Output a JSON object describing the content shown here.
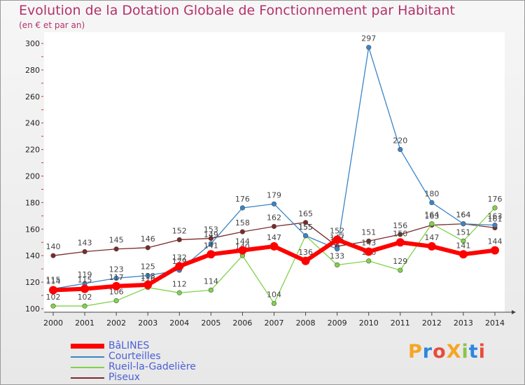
{
  "header": {
    "title": "Evolution de la Dotation Globale de Fonctionnement par Habitant",
    "subtitle": "(en € et par an)"
  },
  "logo": {
    "text": "ProXiti",
    "colors": [
      "#f5a623",
      "#2e86de",
      "#e74c3c",
      "#f5a623",
      "#8bc34a",
      "#2e86de",
      "#e74c3c"
    ]
  },
  "chart_data": {
    "type": "line",
    "x": [
      "2000",
      "2001",
      "2002",
      "2003",
      "2004",
      "2005",
      "2006",
      "2007",
      "2008",
      "2009",
      "2010",
      "2011",
      "2012",
      "2013",
      "2014"
    ],
    "ylim": [
      100,
      300
    ],
    "yticks": [
      100,
      120,
      140,
      160,
      180,
      200,
      220,
      240,
      260,
      280,
      300
    ],
    "grid": false,
    "legend_position": "bottom-left",
    "series": [
      {
        "name": "Piseux",
        "color": "#7a2a2a",
        "values": [
          140,
          143,
          145,
          146,
          152,
          153,
          158,
          162,
          165,
          147,
          151,
          156,
          163,
          164,
          161
        ]
      },
      {
        "name": "Rueil-la-Gadelière",
        "color": "#7fd34a",
        "values": [
          102,
          102,
          106,
          116,
          112,
          114,
          140,
          104,
          155,
          133,
          136,
          129,
          164,
          151,
          176
        ]
      },
      {
        "name": "Courteilles",
        "color": "#3a84c5",
        "values": [
          115,
          119,
          123,
          125,
          129,
          149,
          176,
          179,
          155,
          145,
          297,
          220,
          180,
          164,
          163
        ]
      },
      {
        "name": "BâLINES",
        "color": "#ff0000",
        "values": [
          114,
          115,
          117,
          118,
          132,
          141,
          144,
          147,
          136,
          152,
          143,
          150,
          147,
          141,
          144
        ]
      }
    ]
  }
}
